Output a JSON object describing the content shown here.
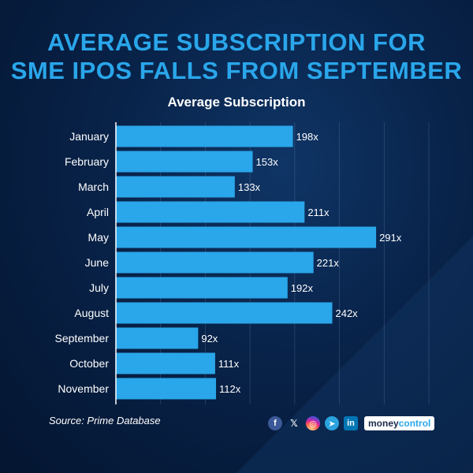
{
  "headline": {
    "line1": "AVERAGE SUBSCRIPTION FOR",
    "line2": "SME IPOs FALLS FROM SEPTEMBER"
  },
  "chart_data": {
    "type": "bar",
    "orientation": "horizontal",
    "title": "Average Subscription",
    "categories": [
      "January",
      "February",
      "March",
      "April",
      "May",
      "June",
      "July",
      "August",
      "September",
      "October",
      "November"
    ],
    "values": [
      198,
      153,
      133,
      211,
      291,
      221,
      192,
      242,
      92,
      111,
      112
    ],
    "value_labels": [
      "198x",
      "153x",
      "133x",
      "211x",
      "291x",
      "221x",
      "192x",
      "242x",
      "92x",
      "111x",
      "112x"
    ],
    "xlim": [
      0,
      350
    ],
    "grid": true,
    "bar_color": "#2aa6ea"
  },
  "footer": {
    "source": "Source: Prime Database",
    "social_icons": [
      "facebook-icon",
      "x-icon",
      "instagram-icon",
      "telegram-icon",
      "linkedin-icon"
    ],
    "social_glyphs": [
      "f",
      "𝕏",
      "◎",
      "➤",
      "in"
    ],
    "brand_money": "money",
    "brand_control": "control"
  }
}
